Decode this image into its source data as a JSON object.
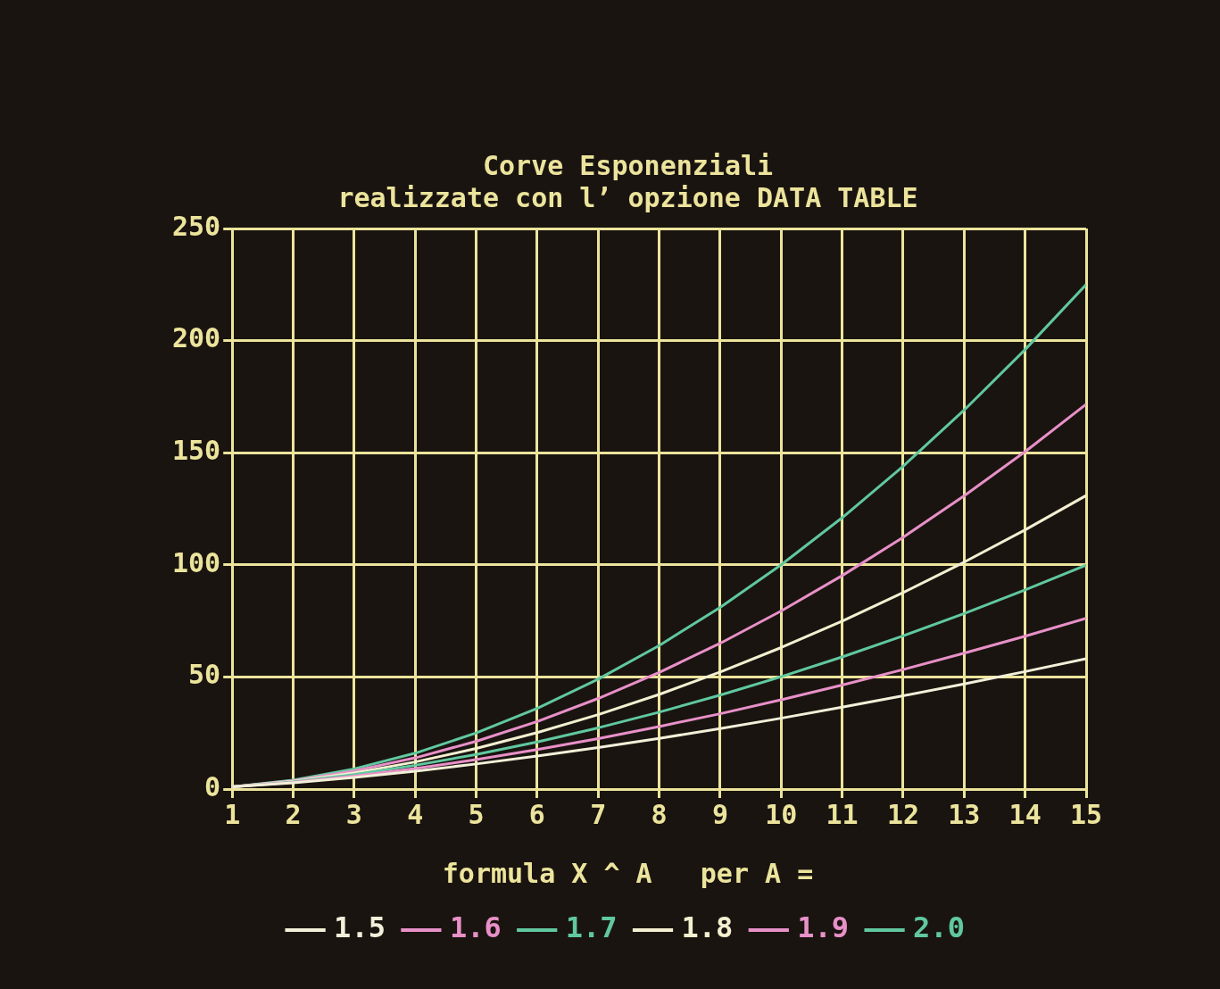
{
  "chart_data": {
    "type": "line",
    "title": "Corve Esponenziali",
    "subtitle": "realizzate con l’ opzione DATA TABLE",
    "legend_title": "formula X ^ A   per A =",
    "x": [
      1,
      2,
      3,
      4,
      5,
      6,
      7,
      8,
      9,
      10,
      11,
      12,
      13,
      14,
      15
    ],
    "series": [
      {
        "name": "1.5",
        "color": "#f2f0d8",
        "values": [
          1,
          2.8,
          5.2,
          8,
          11.2,
          14.7,
          18.5,
          22.6,
          27,
          31.6,
          36.5,
          41.6,
          46.9,
          52.4,
          58.1
        ]
      },
      {
        "name": "1.6",
        "color": "#e890c8",
        "values": [
          1,
          3,
          5.8,
          9.2,
          13.1,
          17.6,
          22.5,
          27.9,
          33.6,
          39.8,
          46.4,
          53.3,
          60.6,
          68.2,
          76.2
        ]
      },
      {
        "name": "1.7",
        "color": "#60c8a0",
        "values": [
          1,
          3.2,
          6.5,
          10.6,
          15.4,
          21,
          27.3,
          34.3,
          41.9,
          50.1,
          58.9,
          68.3,
          78.3,
          88.8,
          99.9
        ]
      },
      {
        "name": "1.8",
        "color": "#f2f0d0",
        "values": [
          1,
          3.5,
          7.2,
          12.1,
          18.1,
          25.2,
          33.2,
          42.2,
          52.2,
          63.1,
          74.9,
          87.6,
          101.2,
          115.6,
          130.9
        ]
      },
      {
        "name": "1.9",
        "color": "#e890c8",
        "values": [
          1,
          3.7,
          8.1,
          13.9,
          21.3,
          30.1,
          40.4,
          52,
          65,
          79.4,
          95.2,
          112.3,
          130.8,
          150.5,
          171.6
        ]
      },
      {
        "name": "2.0",
        "color": "#60c8a0",
        "values": [
          1,
          4,
          9,
          16,
          25,
          36,
          49,
          64,
          81,
          100,
          121,
          144,
          169,
          196,
          225
        ]
      }
    ],
    "xlim": [
      1,
      15
    ],
    "xticks": [
      1,
      2,
      3,
      4,
      5,
      6,
      7,
      8,
      9,
      10,
      11,
      12,
      13,
      14,
      15
    ],
    "ylim": [
      0,
      250
    ],
    "yticks": [
      0,
      50,
      100,
      150,
      200,
      250
    ],
    "grid": true,
    "legend": "bottom",
    "marker": "none",
    "line_style": "solid"
  }
}
